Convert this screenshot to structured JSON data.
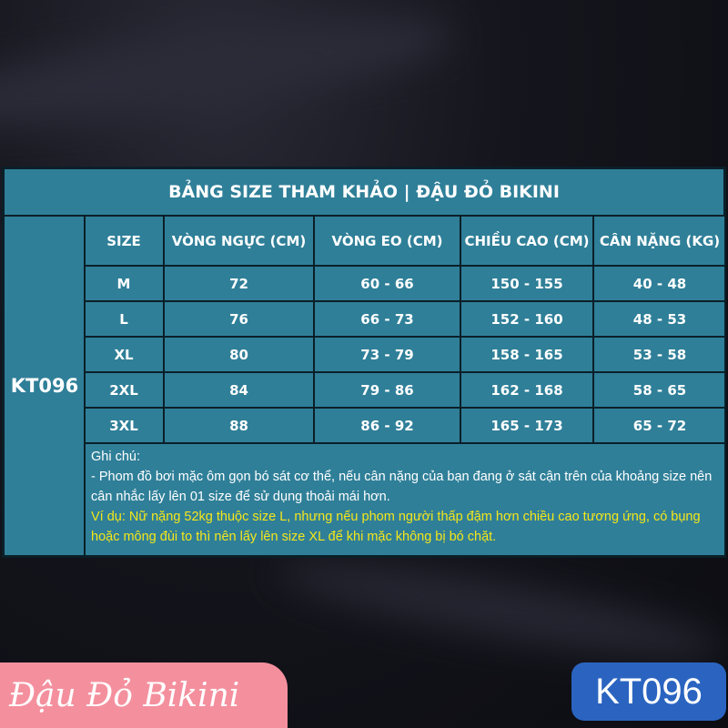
{
  "title": "BẢNG SIZE THAM KHẢO | ĐẬU ĐỎ BIKINI",
  "product_code": "KT096",
  "headers": [
    "SIZE",
    "VÒNG NGỰC (CM)",
    "VÒNG EO (CM)",
    "CHIỀU CAO (CM)",
    "CÂN NẶNG (KG)"
  ],
  "rows": [
    [
      "M",
      "72",
      "60 - 66",
      "150 - 155",
      "40 - 48"
    ],
    [
      "L",
      "76",
      "66 - 73",
      "152 - 160",
      "48 - 53"
    ],
    [
      "XL",
      "80",
      "73 - 79",
      "158 - 165",
      "53 - 58"
    ],
    [
      "2XL",
      "84",
      "79 - 86",
      "162 - 168",
      "58 - 65"
    ],
    [
      "3XL",
      "88",
      "86 - 92",
      "165 - 173",
      "65 - 72"
    ]
  ],
  "notes": {
    "label": "Ghi chú:",
    "line1": "- Phom đồ bơi mặc ôm gọn bó sát cơ thể, nếu cân nặng của bạn đang ở sát cận trên của khoảng size nên cân nhắc lấy lên 01 size để sử dụng thoải mái hơn.",
    "example": "Ví dụ: Nữ nặng 52kg thuộc size L, nhưng nếu phom người thấp đậm hơn chiều cao tương ứng, có bụng hoặc mông đùi to thì nên lấy lên size XL để khi mặc không bị bó chặt."
  },
  "brand": "Đậu Đỏ Bikini",
  "badge": "KT096",
  "colors": {
    "table": "#2f7f98",
    "brand_bg": "#f4909e",
    "badge_bg": "#2a64c0",
    "highlight": "#f4e61a"
  }
}
